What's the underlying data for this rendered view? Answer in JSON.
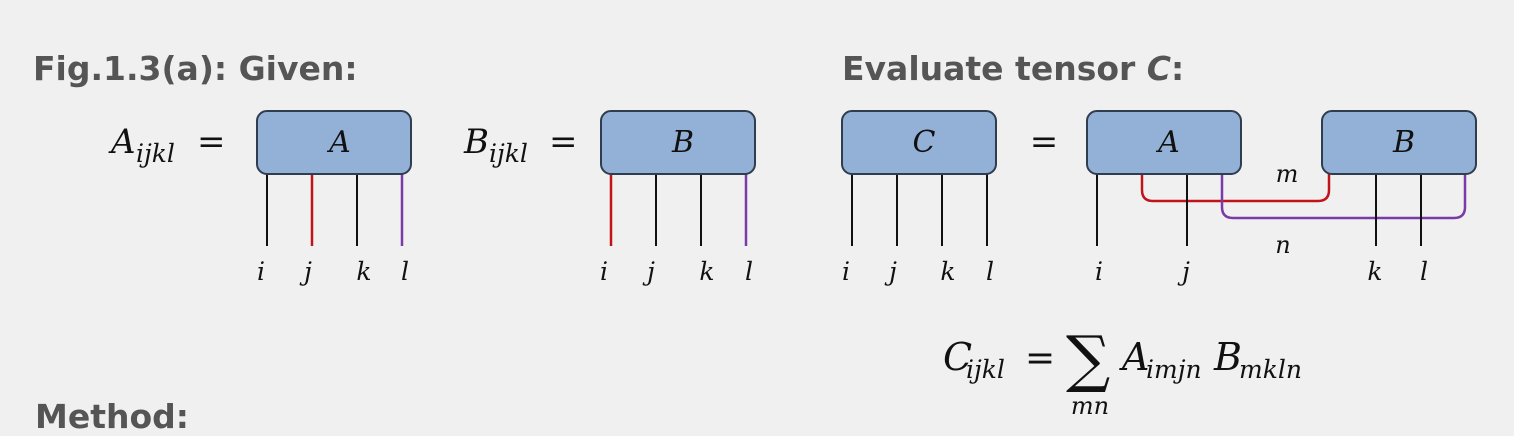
{
  "headings": {
    "given": "Fig.1.3(a): Given:",
    "evaluate_prefix": "Evaluate tensor ",
    "evaluate_tensor": "C",
    "evaluate_suffix": ":",
    "method": "Method:"
  },
  "definitions": {
    "A": {
      "symbol": "A",
      "subscript": "ijkl",
      "equals": "="
    },
    "B": {
      "symbol": "B",
      "subscript": "ijkl",
      "equals": "="
    }
  },
  "boxes": {
    "A_given": "A",
    "B_given": "B",
    "C_result": "C",
    "A_network": "A",
    "B_network": "B"
  },
  "equals_sign": "=",
  "legs": {
    "A_given": [
      "i",
      "j",
      "k",
      "l"
    ],
    "B_given": [
      "i",
      "j",
      "k",
      "l"
    ],
    "C_result": [
      "i",
      "j",
      "k",
      "l"
    ],
    "network": [
      "i",
      "j",
      "k",
      "l"
    ]
  },
  "bonds": {
    "m": "m",
    "n": "n"
  },
  "formula": {
    "lhs_symbol": "C",
    "lhs_subscript": "ijkl",
    "equals": "=",
    "sum": "∑",
    "sum_subscript": "mn",
    "term1_symbol": "A",
    "term1_subscript": "imjn",
    "term2_symbol": "B",
    "term2_subscript": "mkln"
  },
  "colors": {
    "box_fill": "#93b1d6",
    "box_stroke": "#2f3d4f",
    "red_leg": "#c0141a",
    "purple_leg": "#7a3aa8"
  }
}
